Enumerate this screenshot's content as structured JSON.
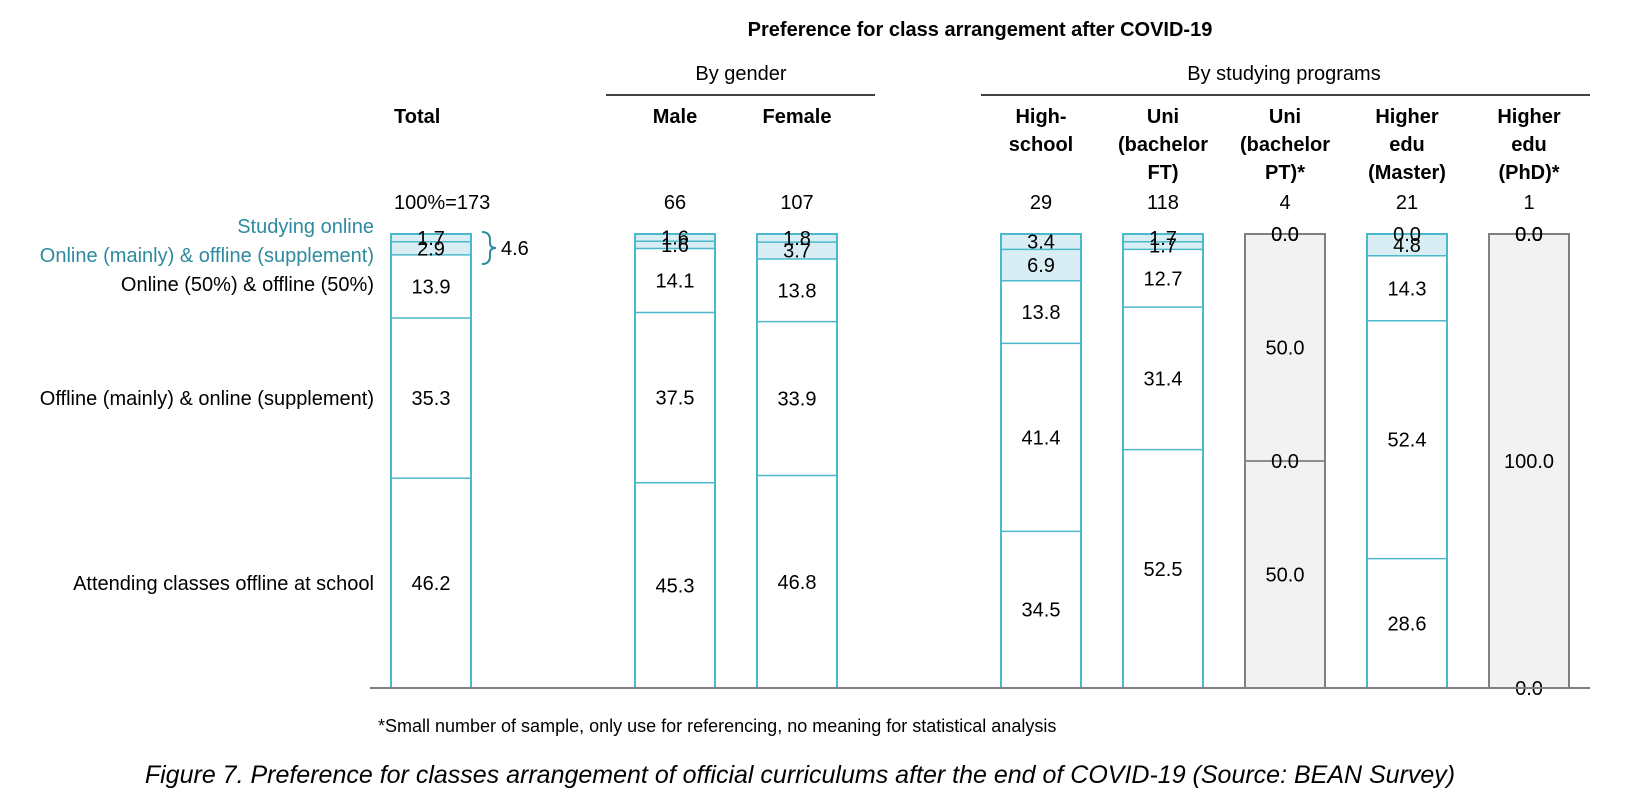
{
  "chart_data": {
    "type": "bar",
    "stacked": true,
    "title": "Preference for class arrangement after COVID-19",
    "groups": [
      "By gender",
      "By studying programs"
    ],
    "categories": [
      {
        "label": [
          "Total"
        ],
        "n": "100%=173"
      },
      {
        "label": [
          "Male"
        ],
        "n": "66"
      },
      {
        "label": [
          "Female"
        ],
        "n": "107"
      },
      {
        "label": [
          "High-",
          "school"
        ],
        "n": "29"
      },
      {
        "label": [
          "Uni",
          "(bachelor",
          "FT)"
        ],
        "n": "118"
      },
      {
        "label": [
          "Uni",
          "(bachelor",
          "PT)*"
        ],
        "n": "4"
      },
      {
        "label": [
          "Higher",
          "edu",
          "(Master)"
        ],
        "n": "21"
      },
      {
        "label": [
          "Higher",
          "edu",
          "(PhD)*"
        ],
        "n": "1"
      }
    ],
    "series": [
      {
        "name": "Studying online",
        "values": [
          1.7,
          1.6,
          1.8,
          3.4,
          1.7,
          0.0,
          0.0,
          0.0
        ]
      },
      {
        "name": "Online (mainly) & offline (supplement)",
        "values": [
          2.9,
          1.6,
          3.7,
          6.9,
          1.7,
          0.0,
          4.8,
          0.0
        ]
      },
      {
        "name": "Online (50%) & offline (50%)",
        "values": [
          13.9,
          14.1,
          13.8,
          13.8,
          12.7,
          50.0,
          14.3,
          0.0
        ]
      },
      {
        "name": "Offline (mainly) & online (supplement)",
        "values": [
          35.3,
          37.5,
          33.9,
          41.4,
          31.4,
          0.0,
          52.4,
          100.0
        ]
      },
      {
        "name": "Attending classes offline at school",
        "values": [
          46.2,
          45.3,
          46.8,
          34.5,
          52.5,
          50.0,
          28.6,
          0.0
        ]
      }
    ],
    "bracket_label": "4.6",
    "footnote": "*Small number of sample, only use for referencing, no meaning for statistical analysis",
    "caption": "Figure 7. Preference for classes arrangement of official curriculums after the end of COVID-19 (Source: BEAN Survey)",
    "ylim": [
      0,
      100
    ]
  }
}
